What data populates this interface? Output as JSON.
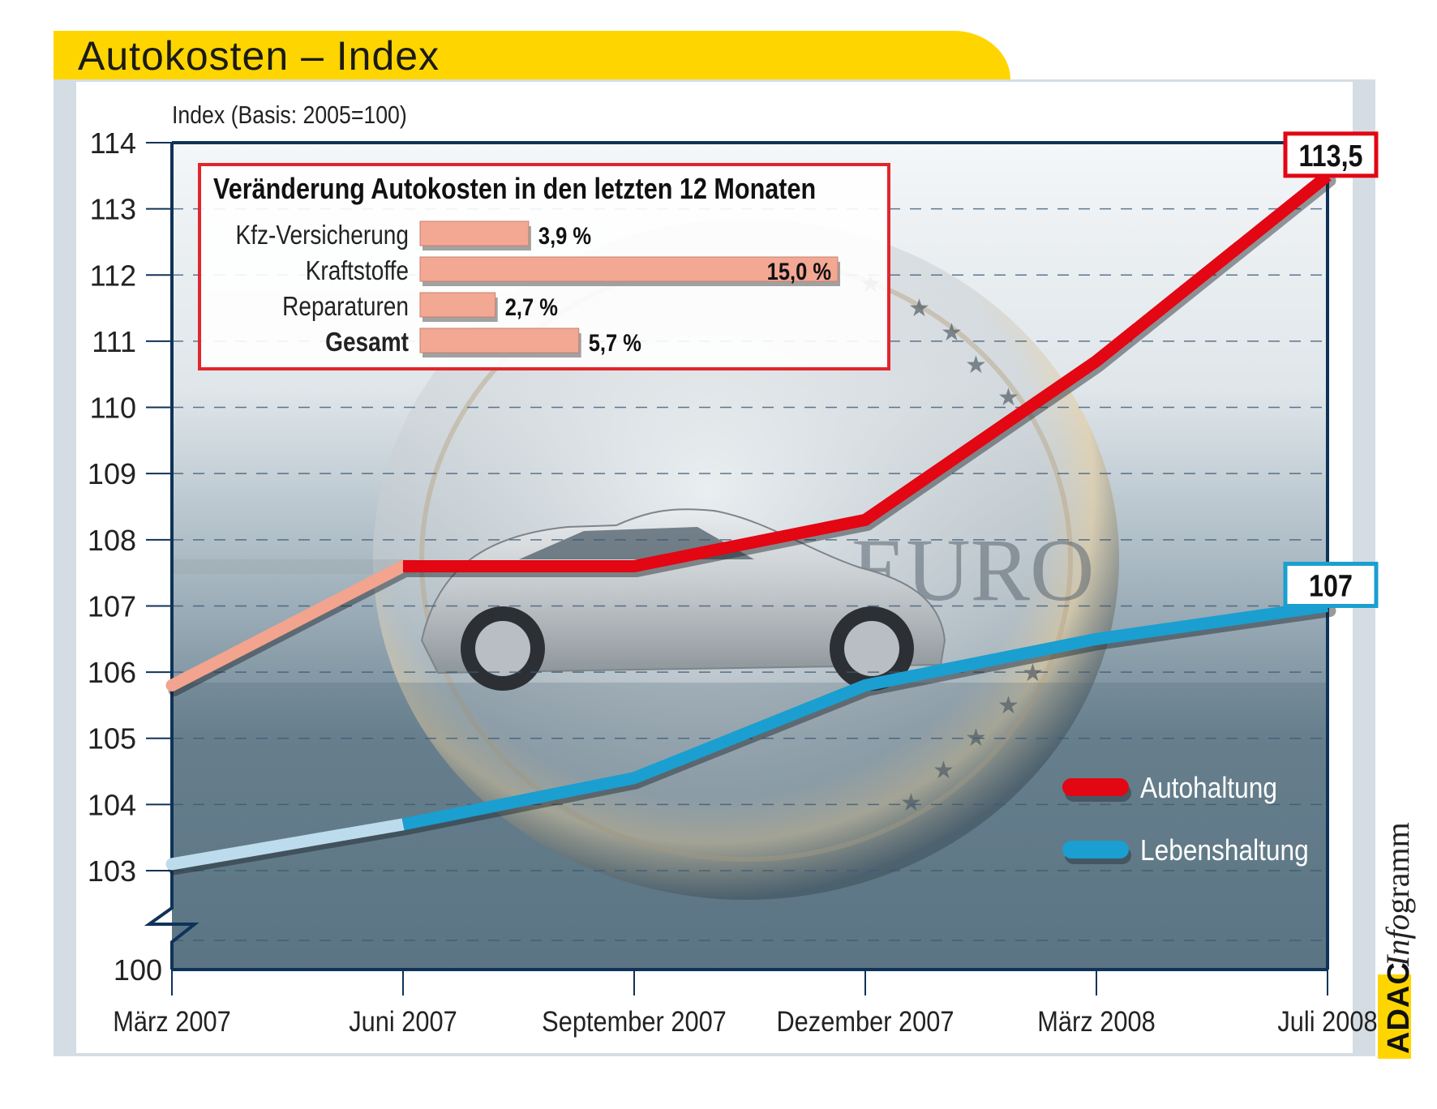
{
  "header": {
    "title": "Autokosten – Index"
  },
  "branding": {
    "badge": "ADAC",
    "product_italic": "Info",
    "product_rest": "gramm"
  },
  "chart_data": {
    "type": "line",
    "title": "Autokosten – Index",
    "ylabel": "Index (Basis: 2005=100)",
    "xlabel": "",
    "categories": [
      "März 2007",
      "Juni 2007",
      "September 2007",
      "Dezember 2007",
      "März 2008",
      "Juli 2008"
    ],
    "y_ticks": [
      "114",
      "113",
      "112",
      "111",
      "110",
      "109",
      "108",
      "107",
      "106",
      "105",
      "104",
      "103",
      "100"
    ],
    "ylim": [
      100,
      114
    ],
    "axis_break": "between 100 and 103",
    "grid": true,
    "legend_position": "bottom-right",
    "series": [
      {
        "name": "Autohaltung",
        "color": "#e30613",
        "start_color": "#f2a48e",
        "values": [
          105.8,
          107.6,
          107.6,
          108.3,
          110.7,
          113.5
        ],
        "end_label": "113,5"
      },
      {
        "name": "Lebenshaltung",
        "color": "#1a9fd0",
        "start_color": "#bcdcee",
        "values": [
          103.1,
          103.7,
          104.4,
          105.8,
          106.5,
          107.0
        ],
        "end_label": "107"
      }
    ],
    "inset": {
      "type": "bar",
      "title": "Veränderung Autokosten in den letzten 12 Monaten",
      "categories": [
        "Kfz-Versicherung",
        "Kraftstoffe",
        "Reparaturen",
        "Gesamt"
      ],
      "values": [
        3.9,
        15.0,
        2.7,
        5.7
      ],
      "value_labels": [
        "3,9 %",
        "15,0 %",
        "2,7 %",
        "5,7 %"
      ],
      "bold_category": "Gesamt",
      "bar_color": "#f3a894",
      "border_color": "#e1262c"
    }
  }
}
